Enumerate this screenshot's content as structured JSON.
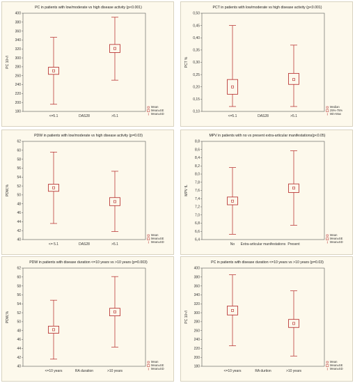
{
  "panels": [
    {
      "title": "PC in patients with low/moderate vs high disease activity (p<0.001)",
      "ylabel": "PC 10⁹/l",
      "xlabel": "DAS28",
      "ylim": [
        180,
        400
      ],
      "yticks": [
        180,
        200,
        220,
        240,
        260,
        280,
        300,
        320,
        340,
        360,
        380,
        400
      ],
      "categories": [
        "<=5.1",
        ">5.1"
      ],
      "legend": [
        "Mean",
        "Mean±SE",
        "Mean±SD"
      ],
      "chart_data": {
        "type": "boxplot",
        "categories": [
          "<=5.1",
          ">5.1"
        ],
        "center": [
          271,
          321
        ],
        "box_low": [
          263,
          312
        ],
        "box_high": [
          279,
          330
        ],
        "whisker_low": [
          196,
          250
        ],
        "whisker_high": [
          346,
          391
        ]
      }
    },
    {
      "title": "PCT in patients with low/moderate vs high disease activity (p<0.001)",
      "ylabel": "PCT %",
      "xlabel": "DAS28",
      "ylim": [
        0.1,
        0.5
      ],
      "yticks": [
        0.1,
        0.15,
        0.2,
        0.25,
        0.3,
        0.35,
        0.4,
        0.45,
        0.5
      ],
      "ydecimals": 2,
      "ycomma": true,
      "categories": [
        "<=5.1",
        ">5.1"
      ],
      "legend": [
        "Median",
        "25%-75%",
        "Min-Max"
      ],
      "chart_data": {
        "type": "boxplot",
        "categories": [
          "<=5.1",
          ">5.1"
        ],
        "center": [
          0.2,
          0.23
        ],
        "box_low": [
          0.17,
          0.21
        ],
        "box_high": [
          0.23,
          0.255
        ],
        "whisker_low": [
          0.12,
          0.12
        ],
        "whisker_high": [
          0.45,
          0.37
        ]
      }
    },
    {
      "title": "PDW in patients with low/moderate vs high disease activity (p=0.03)",
      "ylabel": "PDW,%",
      "xlabel": "DAS28",
      "ylim": [
        40,
        62
      ],
      "yticks": [
        40,
        42,
        44,
        46,
        48,
        50,
        52,
        54,
        56,
        58,
        60,
        62
      ],
      "categories": [
        "<= 5.1",
        ">5.1"
      ],
      "legend": [
        "Mean",
        "Mean±SE",
        "Mean±SD"
      ],
      "chart_data": {
        "type": "boxplot",
        "categories": [
          "<= 5.1",
          ">5.1"
        ],
        "center": [
          51.6,
          48.5
        ],
        "box_low": [
          50.8,
          47.6
        ],
        "box_high": [
          52.4,
          49.4
        ],
        "whisker_low": [
          43.6,
          41.8
        ],
        "whisker_high": [
          59.6,
          55.3
        ]
      }
    },
    {
      "title": "MPV in patients with no vs present extra-articular manifestations(p<0.05)",
      "ylabel": "MPV fL",
      "xlabel": "Extra-articular manifestations",
      "ylim": [
        6.4,
        8.8
      ],
      "yticks": [
        6.4,
        6.6,
        6.8,
        7.0,
        7.2,
        7.4,
        7.6,
        7.8,
        8.0,
        8.2,
        8.4,
        8.6,
        8.8
      ],
      "ydecimals": 1,
      "ycomma": true,
      "categories": [
        "No",
        "Present"
      ],
      "legend": [
        "Mean",
        "Mean±SE",
        "Mean±SD"
      ],
      "chart_data": {
        "type": "boxplot",
        "categories": [
          "No",
          "Present"
        ],
        "center": [
          7.34,
          7.66
        ],
        "box_low": [
          7.25,
          7.55
        ],
        "box_high": [
          7.44,
          7.76
        ],
        "whisker_low": [
          6.53,
          6.75
        ],
        "whisker_high": [
          8.16,
          8.57
        ]
      }
    },
    {
      "title": "PDW in patients with disease duration <=10 years vs >10 years (p=0.003)",
      "ylabel": "PDW,%",
      "xlabel": "RA duration",
      "ylim": [
        40,
        62
      ],
      "yticks": [
        40,
        42,
        44,
        46,
        48,
        50,
        52,
        54,
        56,
        58,
        60,
        62
      ],
      "categories": [
        "<=10 years",
        ">10 years"
      ],
      "legend": [
        "Mean",
        "Mean±SE",
        "Mean±SD"
      ],
      "chart_data": {
        "type": "boxplot",
        "categories": [
          "<=10 years",
          ">10 years"
        ],
        "center": [
          48.2,
          52.2
        ],
        "box_low": [
          47.4,
          51.3
        ],
        "box_high": [
          49.0,
          53.0
        ],
        "whisker_low": [
          41.6,
          44.3
        ],
        "whisker_high": [
          54.8,
          60.1
        ]
      }
    },
    {
      "title": "PC in patients with disease duration <=10 years vs >10 years (p=0.03)",
      "ylabel": "PC 10⁹/l",
      "xlabel": "RA durtion",
      "ylim": [
        180,
        400
      ],
      "yticks": [
        180,
        200,
        220,
        240,
        260,
        280,
        300,
        320,
        340,
        360,
        380,
        400
      ],
      "categories": [
        "<=10 years",
        ">10 years"
      ],
      "legend": [
        "Mean",
        "Mean±SE",
        "Mean±SD"
      ],
      "chart_data": {
        "type": "boxplot",
        "categories": [
          "<=10 years",
          ">10 years"
        ],
        "center": [
          305,
          276
        ],
        "box_low": [
          295,
          267
        ],
        "box_high": [
          315,
          285
        ],
        "whisker_low": [
          226,
          203
        ],
        "whisker_high": [
          385,
          349
        ]
      }
    }
  ],
  "colors": {
    "mark": "#b22222",
    "panel_bg": "#fdf9ec",
    "axis": "#333333"
  }
}
